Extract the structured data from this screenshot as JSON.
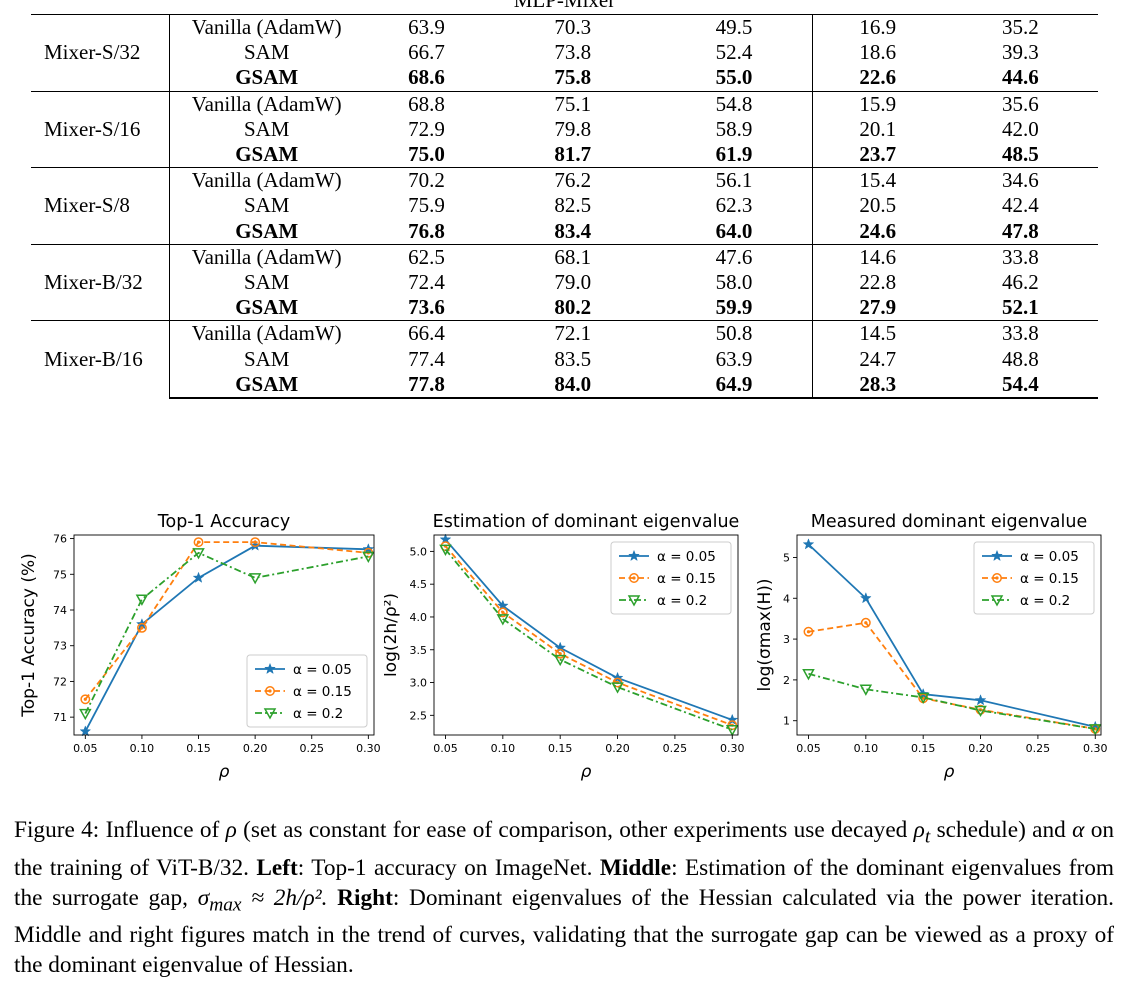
{
  "table": {
    "caption": "MLP-Mixer",
    "groups": [
      {
        "model": "Mixer-S/32",
        "rows": [
          {
            "method": "Vanilla (AdamW)",
            "vals": [
              "63.9",
              "70.3",
              "49.5",
              "16.9",
              "35.2"
            ]
          },
          {
            "method": "SAM",
            "vals": [
              "66.7",
              "73.8",
              "52.4",
              "18.6",
              "39.3"
            ]
          },
          {
            "method": "GSAM",
            "vals": [
              "68.6",
              "75.8",
              "55.0",
              "22.6",
              "44.6"
            ]
          }
        ]
      },
      {
        "model": "Mixer-S/16",
        "rows": [
          {
            "method": "Vanilla (AdamW)",
            "vals": [
              "68.8",
              "75.1",
              "54.8",
              "15.9",
              "35.6"
            ]
          },
          {
            "method": "SAM",
            "vals": [
              "72.9",
              "79.8",
              "58.9",
              "20.1",
              "42.0"
            ]
          },
          {
            "method": "GSAM",
            "vals": [
              "75.0",
              "81.7",
              "61.9",
              "23.7",
              "48.5"
            ]
          }
        ]
      },
      {
        "model": "Mixer-S/8",
        "rows": [
          {
            "method": "Vanilla (AdamW)",
            "vals": [
              "70.2",
              "76.2",
              "56.1",
              "15.4",
              "34.6"
            ]
          },
          {
            "method": "SAM",
            "vals": [
              "75.9",
              "82.5",
              "62.3",
              "20.5",
              "42.4"
            ]
          },
          {
            "method": "GSAM",
            "vals": [
              "76.8",
              "83.4",
              "64.0",
              "24.6",
              "47.8"
            ]
          }
        ]
      },
      {
        "model": "Mixer-B/32",
        "rows": [
          {
            "method": "Vanilla (AdamW)",
            "vals": [
              "62.5",
              "68.1",
              "47.6",
              "14.6",
              "33.8"
            ]
          },
          {
            "method": "SAM",
            "vals": [
              "72.4",
              "79.0",
              "58.0",
              "22.8",
              "46.2"
            ]
          },
          {
            "method": "GSAM",
            "vals": [
              "73.6",
              "80.2",
              "59.9",
              "27.9",
              "52.1"
            ]
          }
        ]
      },
      {
        "model": "Mixer-B/16",
        "rows": [
          {
            "method": "Vanilla (AdamW)",
            "vals": [
              "66.4",
              "72.1",
              "50.8",
              "14.5",
              "33.8"
            ]
          },
          {
            "method": "SAM",
            "vals": [
              "77.4",
              "83.5",
              "63.9",
              "24.7",
              "48.8"
            ]
          },
          {
            "method": "GSAM",
            "vals": [
              "77.8",
              "84.0",
              "64.9",
              "28.3",
              "54.4"
            ]
          }
        ]
      }
    ]
  },
  "chart_data": [
    {
      "type": "line",
      "title": "Top-1 Accuracy",
      "xlabel": "ρ",
      "ylabel": "Top-1 Accuracy (%)",
      "x": [
        0.05,
        0.1,
        0.15,
        0.2,
        0.3
      ],
      "xlim": [
        0.04,
        0.305
      ],
      "ylim": [
        70.5,
        76.1
      ],
      "xticks": [
        "0.05",
        "0.10",
        "0.15",
        "0.20",
        "0.25",
        "0.30"
      ],
      "yticks": [
        "71",
        "72",
        "73",
        "74",
        "75",
        "76"
      ],
      "legend_loc": "lower-right",
      "series": [
        {
          "name": "α = 0.05",
          "values": [
            70.6,
            73.6,
            74.9,
            75.8,
            75.7
          ],
          "color": "#1f77b4",
          "marker": "star",
          "dash": "solid"
        },
        {
          "name": "α = 0.15",
          "values": [
            71.5,
            73.5,
            75.9,
            75.9,
            75.6
          ],
          "color": "#ff7f0e",
          "marker": "circle",
          "dash": "dashed"
        },
        {
          "name": "α = 0.2",
          "values": [
            71.1,
            74.3,
            75.6,
            74.9,
            75.5
          ],
          "color": "#2ca02c",
          "marker": "tri_down",
          "dash": "dashdot"
        }
      ]
    },
    {
      "type": "line",
      "title": "Estimation of dominant eigenvalue",
      "xlabel": "ρ",
      "ylabel": "log(2h/ρ²)",
      "x": [
        0.05,
        0.1,
        0.15,
        0.2,
        0.3
      ],
      "xlim": [
        0.04,
        0.305
      ],
      "ylim": [
        2.2,
        5.25
      ],
      "xticks": [
        "0.05",
        "0.10",
        "0.15",
        "0.20",
        "0.25",
        "0.30"
      ],
      "yticks": [
        "2.5",
        "3.0",
        "3.5",
        "4.0",
        "4.5",
        "5.0"
      ],
      "legend_loc": "upper-right",
      "series": [
        {
          "name": "α = 0.05",
          "values": [
            5.18,
            4.17,
            3.53,
            3.07,
            2.43
          ],
          "color": "#1f77b4",
          "marker": "star",
          "dash": "solid"
        },
        {
          "name": "α = 0.15",
          "values": [
            5.08,
            4.07,
            3.44,
            3.0,
            2.35
          ],
          "color": "#ff7f0e",
          "marker": "circle",
          "dash": "dashed"
        },
        {
          "name": "α = 0.2",
          "values": [
            5.03,
            3.97,
            3.35,
            2.93,
            2.28
          ],
          "color": "#2ca02c",
          "marker": "tri_down",
          "dash": "dashdot"
        }
      ]
    },
    {
      "type": "line",
      "title": "Measured dominant eigenvalue",
      "xlabel": "ρ",
      "ylabel": "log(σmax(H))",
      "x": [
        0.05,
        0.1,
        0.15,
        0.2,
        0.3
      ],
      "xlim": [
        0.04,
        0.305
      ],
      "ylim": [
        0.65,
        5.55
      ],
      "xticks": [
        "0.05",
        "0.10",
        "0.15",
        "0.20",
        "0.25",
        "0.30"
      ],
      "yticks": [
        "1",
        "2",
        "3",
        "4",
        "5"
      ],
      "legend_loc": "upper-right",
      "series": [
        {
          "name": "α = 0.05",
          "values": [
            5.32,
            4.0,
            1.65,
            1.5,
            0.85
          ],
          "color": "#1f77b4",
          "marker": "star",
          "dash": "solid"
        },
        {
          "name": "α = 0.15",
          "values": [
            3.18,
            3.4,
            1.55,
            1.27,
            0.8
          ],
          "color": "#ff7f0e",
          "marker": "circle",
          "dash": "dashed"
        },
        {
          "name": "α = 0.2",
          "values": [
            2.15,
            1.77,
            1.57,
            1.25,
            0.8
          ],
          "color": "#2ca02c",
          "marker": "tri_down",
          "dash": "dashdot"
        }
      ]
    }
  ],
  "caption": {
    "label": "Figure 4:",
    "t1": "Influence of",
    "rho": "ρ",
    "t2": "(set as constant for ease of comparison, other experiments use decayed",
    "rho_t": "ρ",
    "rho_t_sub": "t",
    "t3": "schedule) and",
    "alpha": "α",
    "t4": "on the training of ViT-B/32.",
    "left_label": "Left",
    "left_text": ": Top-1 accuracy on ImageNet.",
    "middle_label": "Middle",
    "middle_text": ": Estimation of the dominant eigenvalues from the surrogate gap,",
    "formula": "σ",
    "formula_sub": "max",
    "formula_rest": " ≈ 2h/ρ².",
    "right_label": "Right",
    "right_text": ": Dominant eigenvalues of the Hessian calculated via the power iteration. Middle and right figures match in the trend of curves, validating that the surrogate gap can be viewed as a proxy of the dominant eigenvalue of Hessian."
  }
}
